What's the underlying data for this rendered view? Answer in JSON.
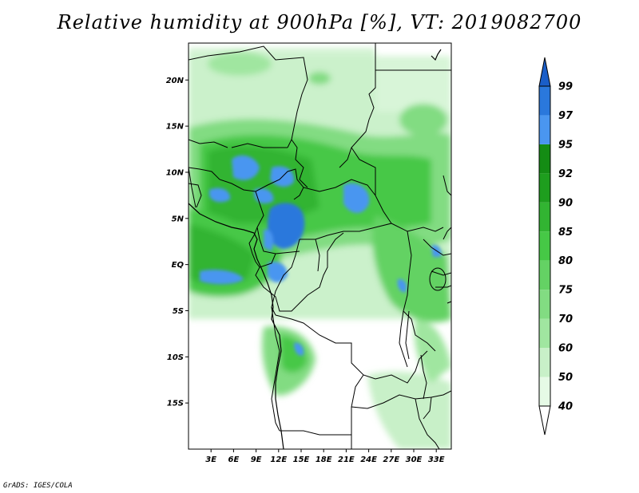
{
  "title": "Relative humidity at 900hPa [%], VT: 2019082700",
  "footer": "GrADS: IGES/COLA",
  "map": {
    "lon_range": [
      0,
      35
    ],
    "lat_range": [
      -20,
      24
    ],
    "lat_ticks": [
      {
        "value": 20,
        "label": "20N"
      },
      {
        "value": 15,
        "label": "15N"
      },
      {
        "value": 10,
        "label": "10N"
      },
      {
        "value": 5,
        "label": "5N"
      },
      {
        "value": 0,
        "label": "EQ"
      },
      {
        "value": -5,
        "label": "5S"
      },
      {
        "value": -10,
        "label": "10S"
      },
      {
        "value": -15,
        "label": "15S"
      }
    ],
    "lon_ticks": [
      {
        "value": 3,
        "label": "3E"
      },
      {
        "value": 6,
        "label": "6E"
      },
      {
        "value": 9,
        "label": "9E"
      },
      {
        "value": 12,
        "label": "12E"
      },
      {
        "value": 15,
        "label": "15E"
      },
      {
        "value": 18,
        "label": "18E"
      },
      {
        "value": 21,
        "label": "21E"
      },
      {
        "value": 24,
        "label": "24E"
      },
      {
        "value": 27,
        "label": "27E"
      },
      {
        "value": 30,
        "label": "30E"
      },
      {
        "value": 33,
        "label": "33E"
      }
    ]
  },
  "colorbar": {
    "levels": [
      "40",
      "50",
      "60",
      "70",
      "75",
      "80",
      "85",
      "90",
      "92",
      "95",
      "97",
      "99"
    ],
    "colors": [
      "#e6fae6",
      "#c8f0c8",
      "#a0e6a0",
      "#82dc82",
      "#64d264",
      "#46c846",
      "#32b432",
      "#1e9e1e",
      "#148c14",
      "#4a96f0",
      "#2a78dc",
      "#1a5ec8"
    ]
  }
}
